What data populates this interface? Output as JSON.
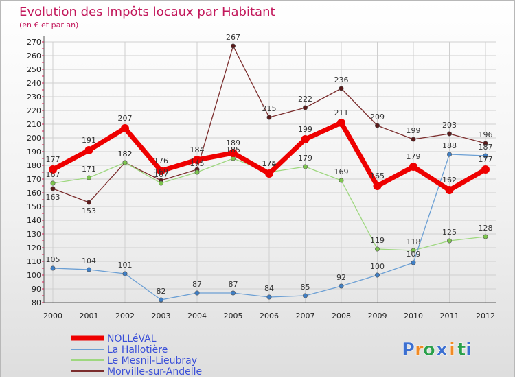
{
  "chart_data": {
    "type": "line",
    "title": "Evolution des Impôts locaux par Habitant",
    "subtitle": "(en € et par an)",
    "xlabel": "",
    "ylabel": "",
    "x": [
      2000,
      2001,
      2002,
      2003,
      2004,
      2005,
      2006,
      2007,
      2008,
      2009,
      2010,
      2011,
      2012
    ],
    "ylim": [
      80,
      270
    ],
    "yticks": [
      80,
      90,
      100,
      110,
      120,
      130,
      140,
      150,
      160,
      170,
      180,
      190,
      200,
      210,
      220,
      230,
      240,
      250,
      260,
      270
    ],
    "grid": true,
    "series": [
      {
        "name": "Morville-sur-Andelle",
        "color": "#7b2d2d",
        "dot": "#5a1a1a",
        "values": [
          163,
          153,
          182,
          169,
          177,
          267,
          215,
          222,
          236,
          209,
          199,
          203,
          196
        ]
      },
      {
        "name": "Le Mesnil-Lieubray",
        "color": "#9ed77f",
        "dot": "#7cc44e",
        "values": [
          167,
          171,
          182,
          167,
          175,
          185,
          175,
          179,
          169,
          119,
          118,
          125,
          128
        ]
      },
      {
        "name": "La Hallotière",
        "color": "#6b9fd4",
        "dot": "#3f7fc6",
        "values": [
          105,
          104,
          101,
          82,
          87,
          87,
          84,
          85,
          92,
          100,
          109,
          188,
          187
        ]
      },
      {
        "name": "NOLLéVAL",
        "color": "#ee0000",
        "dot": "#ee0000",
        "values": [
          177,
          191,
          207,
          176,
          184,
          189,
          174,
          199,
          211,
          165,
          179,
          162,
          177
        ]
      }
    ],
    "legend_order": [
      "NOLLéVAL",
      "La Hallotière",
      "Le Mesnil-Lieubray",
      "Morville-sur-Andelle"
    ],
    "legend_placement": "bottom-left",
    "legend_color": "#3a4fd8"
  },
  "logo": {
    "letters": [
      "P",
      "r",
      "o",
      "x",
      "i",
      "t",
      "i"
    ],
    "colors": [
      "#3b6fd1",
      "#f08a24",
      "#2aa04a",
      "#3b6fd1",
      "#f08a24",
      "#2aa04a",
      "#3b6fd1"
    ]
  }
}
